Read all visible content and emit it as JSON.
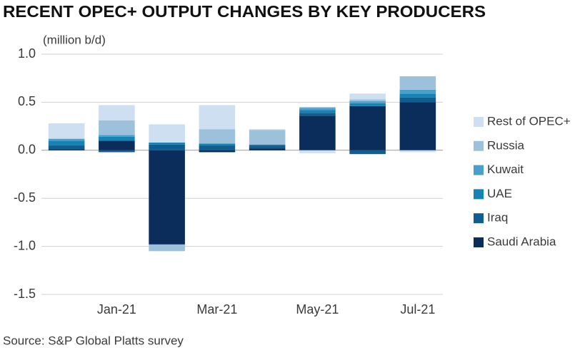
{
  "chart_data": {
    "type": "stacked-bar",
    "title": "RECENT OPEC+ OUTPUT CHANGES BY KEY PRODUCERS",
    "y_label": "(million b/d)",
    "source": "Source: S&P Global Platts survey",
    "categories": [
      null,
      "Jan-21",
      null,
      "Mar-21",
      null,
      "May-21",
      null,
      "Jul-21"
    ],
    "series": [
      {
        "name": "Saudi Arabia",
        "color": "#0b2d5b",
        "values": [
          0.01,
          0.1,
          -0.98,
          -0.02,
          0.02,
          0.36,
          0.46,
          0.5
        ]
      },
      {
        "name": "Iraq",
        "color": "#0f5e8f",
        "values": [
          0.04,
          -0.02,
          0.06,
          0.05,
          0.03,
          0.03,
          -0.04,
          0.05
        ]
      },
      {
        "name": "UAE",
        "color": "#1583b4",
        "values": [
          0.05,
          0.04,
          0.02,
          0.02,
          0.01,
          0.03,
          0.03,
          0.04
        ]
      },
      {
        "name": "Kuwait",
        "color": "#4aa0c8",
        "values": [
          0.02,
          0.02,
          0,
          0,
          0,
          0.02,
          0.02,
          0.04
        ]
      },
      {
        "name": "Russia",
        "color": "#9dc1db",
        "values": [
          0,
          0.15,
          -0.07,
          0.15,
          0.15,
          0.01,
          0.02,
          0.14
        ]
      },
      {
        "name": "Rest of OPEC+",
        "color": "#cddff0",
        "values": [
          0.16,
          0.16,
          0.19,
          0.25,
          0.01,
          -0.03,
          0.06,
          -0.02
        ]
      }
    ],
    "ylim": [
      -1.5,
      1.0
    ],
    "yticks": [
      {
        "value": 1.0,
        "label": "1.0"
      },
      0.5,
      {
        "value": 0.0,
        "label": "0.0"
      },
      -0.5,
      {
        "value": -1.0,
        "label": "-1.0"
      },
      -1.5
    ],
    "grid": true,
    "legend": "right"
  }
}
